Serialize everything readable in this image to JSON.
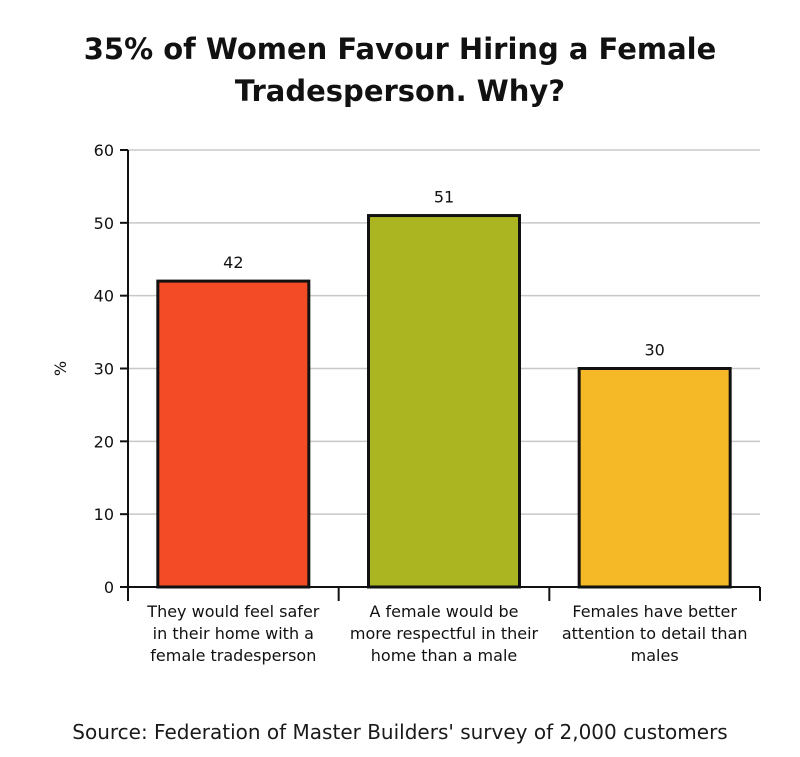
{
  "title_lines": [
    "35% of Women Favour Hiring a Female",
    "Tradesperson. Why?"
  ],
  "source": "Source: Federation of Master Builders' survey of 2,000 customers",
  "chart_data": {
    "type": "bar",
    "title": "35% of Women Favour Hiring a Female Tradesperson. Why?",
    "xlabel": "",
    "ylabel": "%",
    "ylim": [
      0,
      60
    ],
    "yticks": [
      0,
      10,
      20,
      30,
      40,
      50,
      60
    ],
    "grid": true,
    "categories": [
      [
        "They would feel safer",
        "in their home with a",
        "female tradesperson"
      ],
      [
        "A female would be",
        "more respectful in their",
        "home than a male"
      ],
      [
        "Females have better",
        "attention to detail than",
        "males"
      ]
    ],
    "values": [
      42,
      51,
      30
    ],
    "data_labels": [
      "42",
      "51",
      "30"
    ],
    "colors": [
      "#f44b27",
      "#abb521",
      "#f5b927"
    ]
  }
}
